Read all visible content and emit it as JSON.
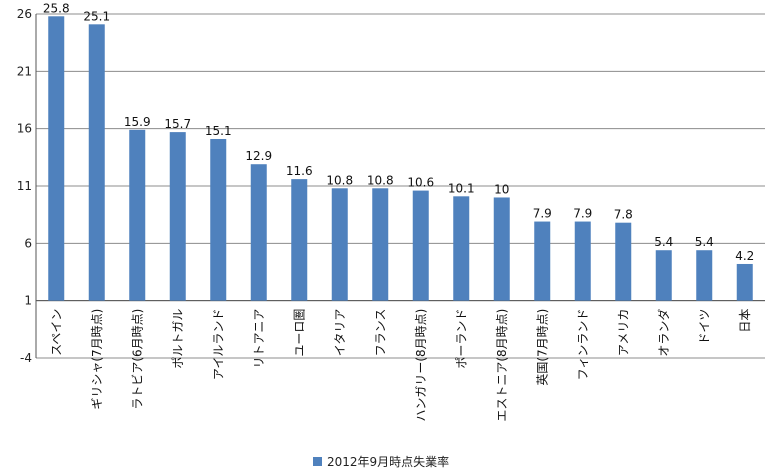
{
  "chart_data": {
    "type": "bar",
    "categories": [
      "スペイン",
      "ギリシャ(7月時点)",
      "ラトビア(6月時点)",
      "ポルトガル",
      "アイルランド",
      "リトアニア",
      "ユーロ圏",
      "イタリア",
      "フランス",
      "ハンガリー(8月時点)",
      "ポーランド",
      "エストニア(8月時点)",
      "英国(7月時点)",
      "フィンランド",
      "アメリカ",
      "オランダ",
      "ドイツ",
      "日本"
    ],
    "series": [
      {
        "name": "2012年9月時点失業率",
        "values": [
          25.8,
          25.1,
          15.9,
          15.7,
          15.1,
          12.9,
          11.6,
          10.8,
          10.8,
          10.6,
          10.1,
          10,
          7.9,
          7.9,
          7.8,
          5.4,
          5.4,
          4.2
        ],
        "labels": [
          "25.8",
          "25.1",
          "15.9",
          "15.7",
          "15.1",
          "12.9",
          "11.6",
          "10.8",
          "10.8",
          "10.6",
          "10.1",
          "10",
          "7.9",
          "7.9",
          "7.8",
          "5.4",
          "5.4",
          "4.2"
        ]
      }
    ],
    "ylim": [
      -4,
      26
    ],
    "yticks": [
      "26",
      "21",
      "16",
      "11",
      "6",
      "1",
      "-4"
    ],
    "grid": true,
    "legend": "bottom",
    "bar_color": "#4f81bd",
    "grid_color": "#8c8c8c"
  }
}
